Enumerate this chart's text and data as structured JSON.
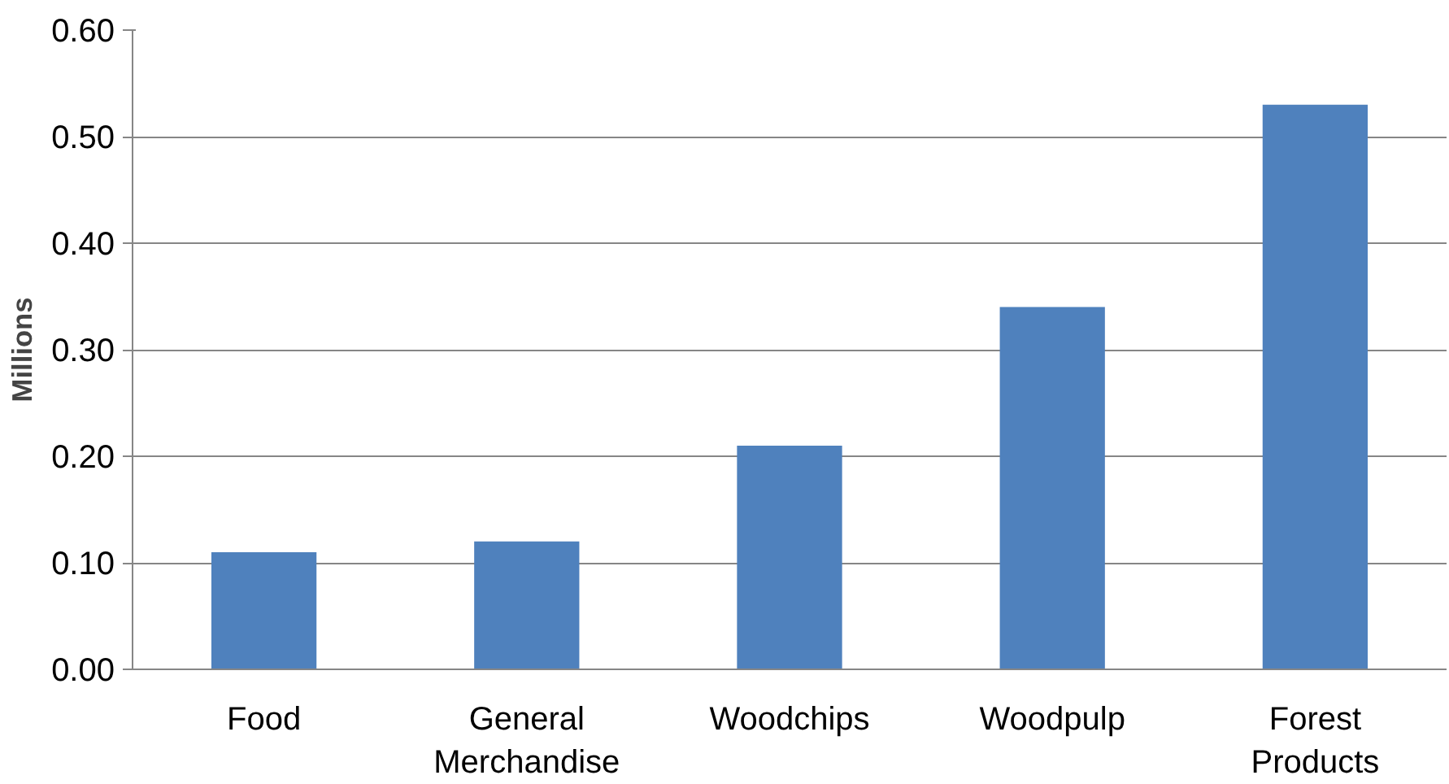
{
  "chart_data": {
    "type": "bar",
    "ylabel": "Millions",
    "categories": [
      "Food",
      "General Merchandise",
      "Woodchips",
      "Woodpulp",
      "Forest Products"
    ],
    "values": [
      0.11,
      0.12,
      0.21,
      0.34,
      0.53
    ],
    "color": "#4f81bd",
    "ylim": [
      0,
      0.6
    ],
    "yticks": [
      {
        "value": 0,
        "label": "0.00"
      },
      {
        "value": 0.1,
        "label": "0.10"
      },
      {
        "value": 0.2,
        "label": "0.20"
      },
      {
        "value": 0.3,
        "label": "0.30"
      },
      {
        "value": 0.4,
        "label": "0.40"
      },
      {
        "value": 0.5,
        "label": "0.50"
      },
      {
        "value": 0.6,
        "label": "0.60"
      }
    ],
    "grid": "y"
  }
}
